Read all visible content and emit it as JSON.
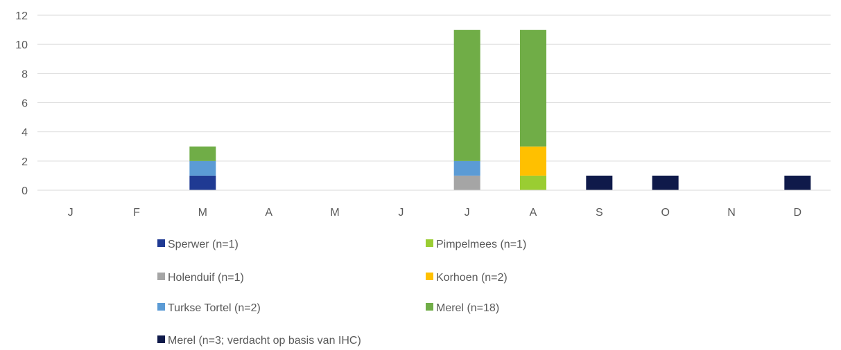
{
  "chart_data": {
    "type": "bar",
    "stacked": true,
    "categories": [
      "J",
      "F",
      "M",
      "A",
      "M",
      "J",
      "J",
      "A",
      "S",
      "O",
      "N",
      "D"
    ],
    "ylim": [
      0,
      12
    ],
    "yticks": [
      0,
      2,
      4,
      6,
      8,
      10,
      12
    ],
    "grid": true,
    "legend_position": "bottom",
    "series": [
      {
        "name": "Sperwer (n=1)",
        "color": "#1f3a93",
        "values": [
          0,
          0,
          1,
          0,
          0,
          0,
          0,
          0,
          0,
          0,
          0,
          0
        ]
      },
      {
        "name": "Pimpelmees (n=1)",
        "color": "#9acd32",
        "values": [
          0,
          0,
          0,
          0,
          0,
          0,
          0,
          1,
          0,
          0,
          0,
          0
        ]
      },
      {
        "name": "Holenduif (n=1)",
        "color": "#a5a5a5",
        "values": [
          0,
          0,
          0,
          0,
          0,
          0,
          1,
          0,
          0,
          0,
          0,
          0
        ]
      },
      {
        "name": "Korhoen (n=2)",
        "color": "#ffc000",
        "values": [
          0,
          0,
          0,
          0,
          0,
          0,
          0,
          2,
          0,
          0,
          0,
          0
        ]
      },
      {
        "name": "Turkse Tortel (n=2)",
        "color": "#5b9bd5",
        "values": [
          0,
          0,
          1,
          0,
          0,
          0,
          1,
          0,
          0,
          0,
          0,
          0
        ]
      },
      {
        "name": "Merel (n=18)",
        "color": "#70ad47",
        "values": [
          0,
          0,
          1,
          0,
          0,
          0,
          9,
          8,
          0,
          0,
          0,
          0
        ]
      },
      {
        "name": "Merel (n=3; verdacht op basis van IHC)",
        "color": "#0f1a4a",
        "values": [
          0,
          0,
          0,
          0,
          0,
          0,
          0,
          0,
          1,
          1,
          0,
          1
        ]
      }
    ]
  }
}
